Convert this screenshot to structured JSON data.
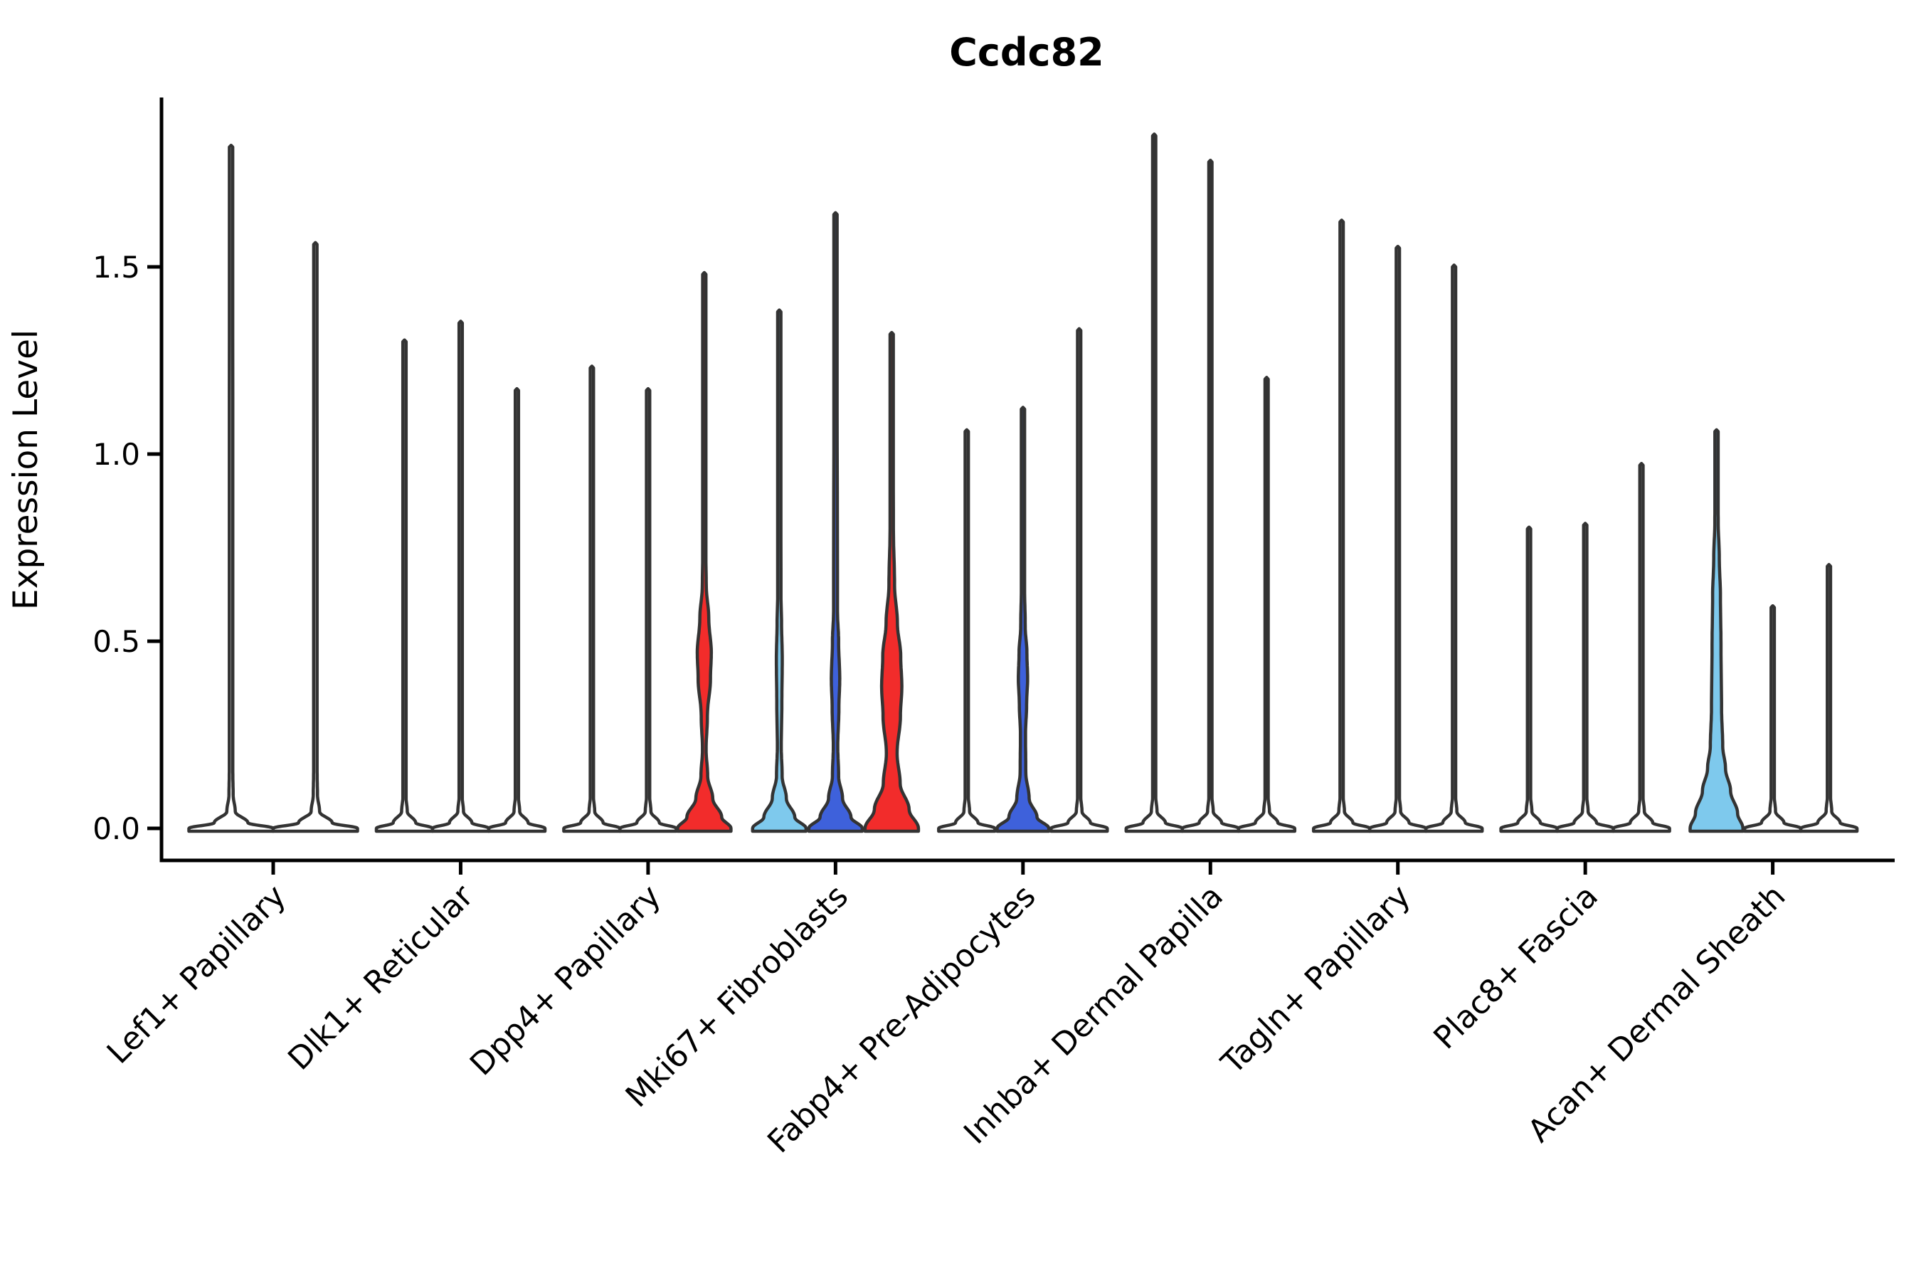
{
  "title": "Ccdc82",
  "axes": {
    "ylabel": "Expression Level"
  },
  "chart_data": {
    "type": "violin",
    "title": "Ccdc82",
    "xlabel": "",
    "ylabel": "Expression Level",
    "ylim": [
      0,
      1.95
    ],
    "grid": false,
    "legend": "none",
    "xticklabel_rotation": 45,
    "ytick_labels": [
      "0.0",
      "0.5",
      "1.0",
      "1.5"
    ],
    "ytick_values": [
      0.0,
      0.5,
      1.0,
      1.5
    ],
    "categories": [
      "Lef1+ Papillary",
      "Dlk1+ Reticular",
      "Dpp4+ Papillary",
      "Mki67+ Fibroblasts",
      "Fabp4+ Pre-Adipocytes",
      "Inhba+ Dermal Papilla",
      "Tagln+ Papillary",
      "Plac8+ Fascia",
      "Acan+ Dermal Sheath"
    ],
    "palette": {
      "red": "#F22C2B",
      "skyblue": "#7EC9ED",
      "royalblue": "#3E61DB",
      "none": "#FFFFFF",
      "outline": "#333333",
      "axis": "#000000"
    },
    "profiles": {
      "spike": [
        [
          0,
          1.0
        ],
        [
          0.015,
          0.4
        ],
        [
          0.045,
          0.1
        ],
        [
          0.09,
          0.05
        ],
        [
          0.15,
          0.042
        ],
        [
          -1,
          0.04
        ]
      ],
      "g3_red": [
        [
          0,
          0.95
        ],
        [
          0.03,
          0.62
        ],
        [
          0.08,
          0.3
        ],
        [
          0.14,
          0.12
        ],
        [
          0.21,
          0.065
        ],
        [
          0.3,
          0.11
        ],
        [
          0.4,
          0.22
        ],
        [
          0.47,
          0.25
        ],
        [
          0.56,
          0.16
        ],
        [
          0.65,
          0.07
        ],
        [
          0.75,
          0.05
        ],
        [
          -1,
          0.04
        ]
      ],
      "g4_lightblue": [
        [
          0,
          0.95
        ],
        [
          0.03,
          0.55
        ],
        [
          0.08,
          0.25
        ],
        [
          0.14,
          0.1
        ],
        [
          0.22,
          0.07
        ],
        [
          0.33,
          0.09
        ],
        [
          0.45,
          0.105
        ],
        [
          0.55,
          0.08
        ],
        [
          0.62,
          0.06
        ],
        [
          -1,
          0.04
        ]
      ],
      "g4_royalblue": [
        [
          0,
          0.95
        ],
        [
          0.03,
          0.55
        ],
        [
          0.08,
          0.25
        ],
        [
          0.14,
          0.11
        ],
        [
          0.22,
          0.08
        ],
        [
          0.32,
          0.12
        ],
        [
          0.4,
          0.15
        ],
        [
          0.5,
          0.11
        ],
        [
          0.58,
          0.07
        ],
        [
          -1,
          0.04
        ]
      ],
      "g4_red": [
        [
          0,
          0.95
        ],
        [
          0.05,
          0.62
        ],
        [
          0.12,
          0.3
        ],
        [
          0.2,
          0.19
        ],
        [
          0.3,
          0.31
        ],
        [
          0.38,
          0.36
        ],
        [
          0.46,
          0.32
        ],
        [
          0.55,
          0.2
        ],
        [
          0.65,
          0.1
        ],
        [
          0.8,
          0.06
        ],
        [
          -1,
          0.04
        ]
      ],
      "g5_royalblue": [
        [
          0,
          0.92
        ],
        [
          0.03,
          0.5
        ],
        [
          0.08,
          0.22
        ],
        [
          0.15,
          0.1
        ],
        [
          0.25,
          0.09
        ],
        [
          0.33,
          0.13
        ],
        [
          0.4,
          0.165
        ],
        [
          0.47,
          0.14
        ],
        [
          0.54,
          0.08
        ],
        [
          0.65,
          0.055
        ],
        [
          -1,
          0.04
        ]
      ],
      "g9_lightblue": [
        [
          0,
          0.94
        ],
        [
          0.04,
          0.75
        ],
        [
          0.1,
          0.5
        ],
        [
          0.16,
          0.32
        ],
        [
          0.22,
          0.22
        ],
        [
          0.32,
          0.18
        ],
        [
          0.48,
          0.16
        ],
        [
          0.62,
          0.14
        ],
        [
          0.72,
          0.1
        ],
        [
          0.82,
          0.06
        ],
        [
          0.92,
          0.045
        ],
        [
          -1,
          0.04
        ]
      ]
    },
    "groups": [
      {
        "category": "Lef1+ Papillary",
        "violins": [
          {
            "max": 1.82,
            "fill": "none",
            "profile": "spike"
          },
          {
            "max": 1.56,
            "fill": "none",
            "profile": "spike"
          }
        ]
      },
      {
        "category": "Dlk1+ Reticular",
        "violins": [
          {
            "max": 1.3,
            "fill": "none",
            "profile": "spike"
          },
          {
            "max": 1.35,
            "fill": "none",
            "profile": "spike"
          },
          {
            "max": 1.17,
            "fill": "none",
            "profile": "spike"
          }
        ]
      },
      {
        "category": "Dpp4+ Papillary",
        "violins": [
          {
            "max": 1.23,
            "fill": "none",
            "profile": "spike"
          },
          {
            "max": 1.17,
            "fill": "none",
            "profile": "spike"
          },
          {
            "max": 1.48,
            "fill": "red",
            "profile": "g3_red"
          }
        ]
      },
      {
        "category": "Mki67+ Fibroblasts",
        "violins": [
          {
            "max": 1.38,
            "fill": "skyblue",
            "profile": "g4_lightblue"
          },
          {
            "max": 1.64,
            "fill": "royalblue",
            "profile": "g4_royalblue"
          },
          {
            "max": 1.32,
            "fill": "red",
            "profile": "g4_red"
          }
        ]
      },
      {
        "category": "Fabp4+ Pre-Adipocytes",
        "violins": [
          {
            "max": 1.06,
            "fill": "none",
            "profile": "spike"
          },
          {
            "max": 1.12,
            "fill": "royalblue",
            "profile": "g5_royalblue"
          },
          {
            "max": 1.33,
            "fill": "none",
            "profile": "spike"
          }
        ]
      },
      {
        "category": "Inhba+ Dermal Papilla",
        "violins": [
          {
            "max": 1.85,
            "fill": "none",
            "profile": "spike"
          },
          {
            "max": 1.78,
            "fill": "none",
            "profile": "spike"
          },
          {
            "max": 1.2,
            "fill": "none",
            "profile": "spike"
          }
        ]
      },
      {
        "category": "Tagln+ Papillary",
        "violins": [
          {
            "max": 1.62,
            "fill": "none",
            "profile": "spike"
          },
          {
            "max": 1.55,
            "fill": "none",
            "profile": "spike"
          },
          {
            "max": 1.5,
            "fill": "none",
            "profile": "spike"
          }
        ]
      },
      {
        "category": "Plac8+ Fascia",
        "violins": [
          {
            "max": 0.8,
            "fill": "none",
            "profile": "spike"
          },
          {
            "max": 0.81,
            "fill": "none",
            "profile": "spike"
          },
          {
            "max": 0.97,
            "fill": "none",
            "profile": "spike"
          }
        ]
      },
      {
        "category": "Acan+ Dermal Sheath",
        "violins": [
          {
            "max": 1.06,
            "fill": "skyblue",
            "profile": "g9_lightblue"
          },
          {
            "max": 0.59,
            "fill": "none",
            "profile": "spike"
          },
          {
            "max": 0.7,
            "fill": "none",
            "profile": "spike"
          }
        ]
      }
    ]
  }
}
